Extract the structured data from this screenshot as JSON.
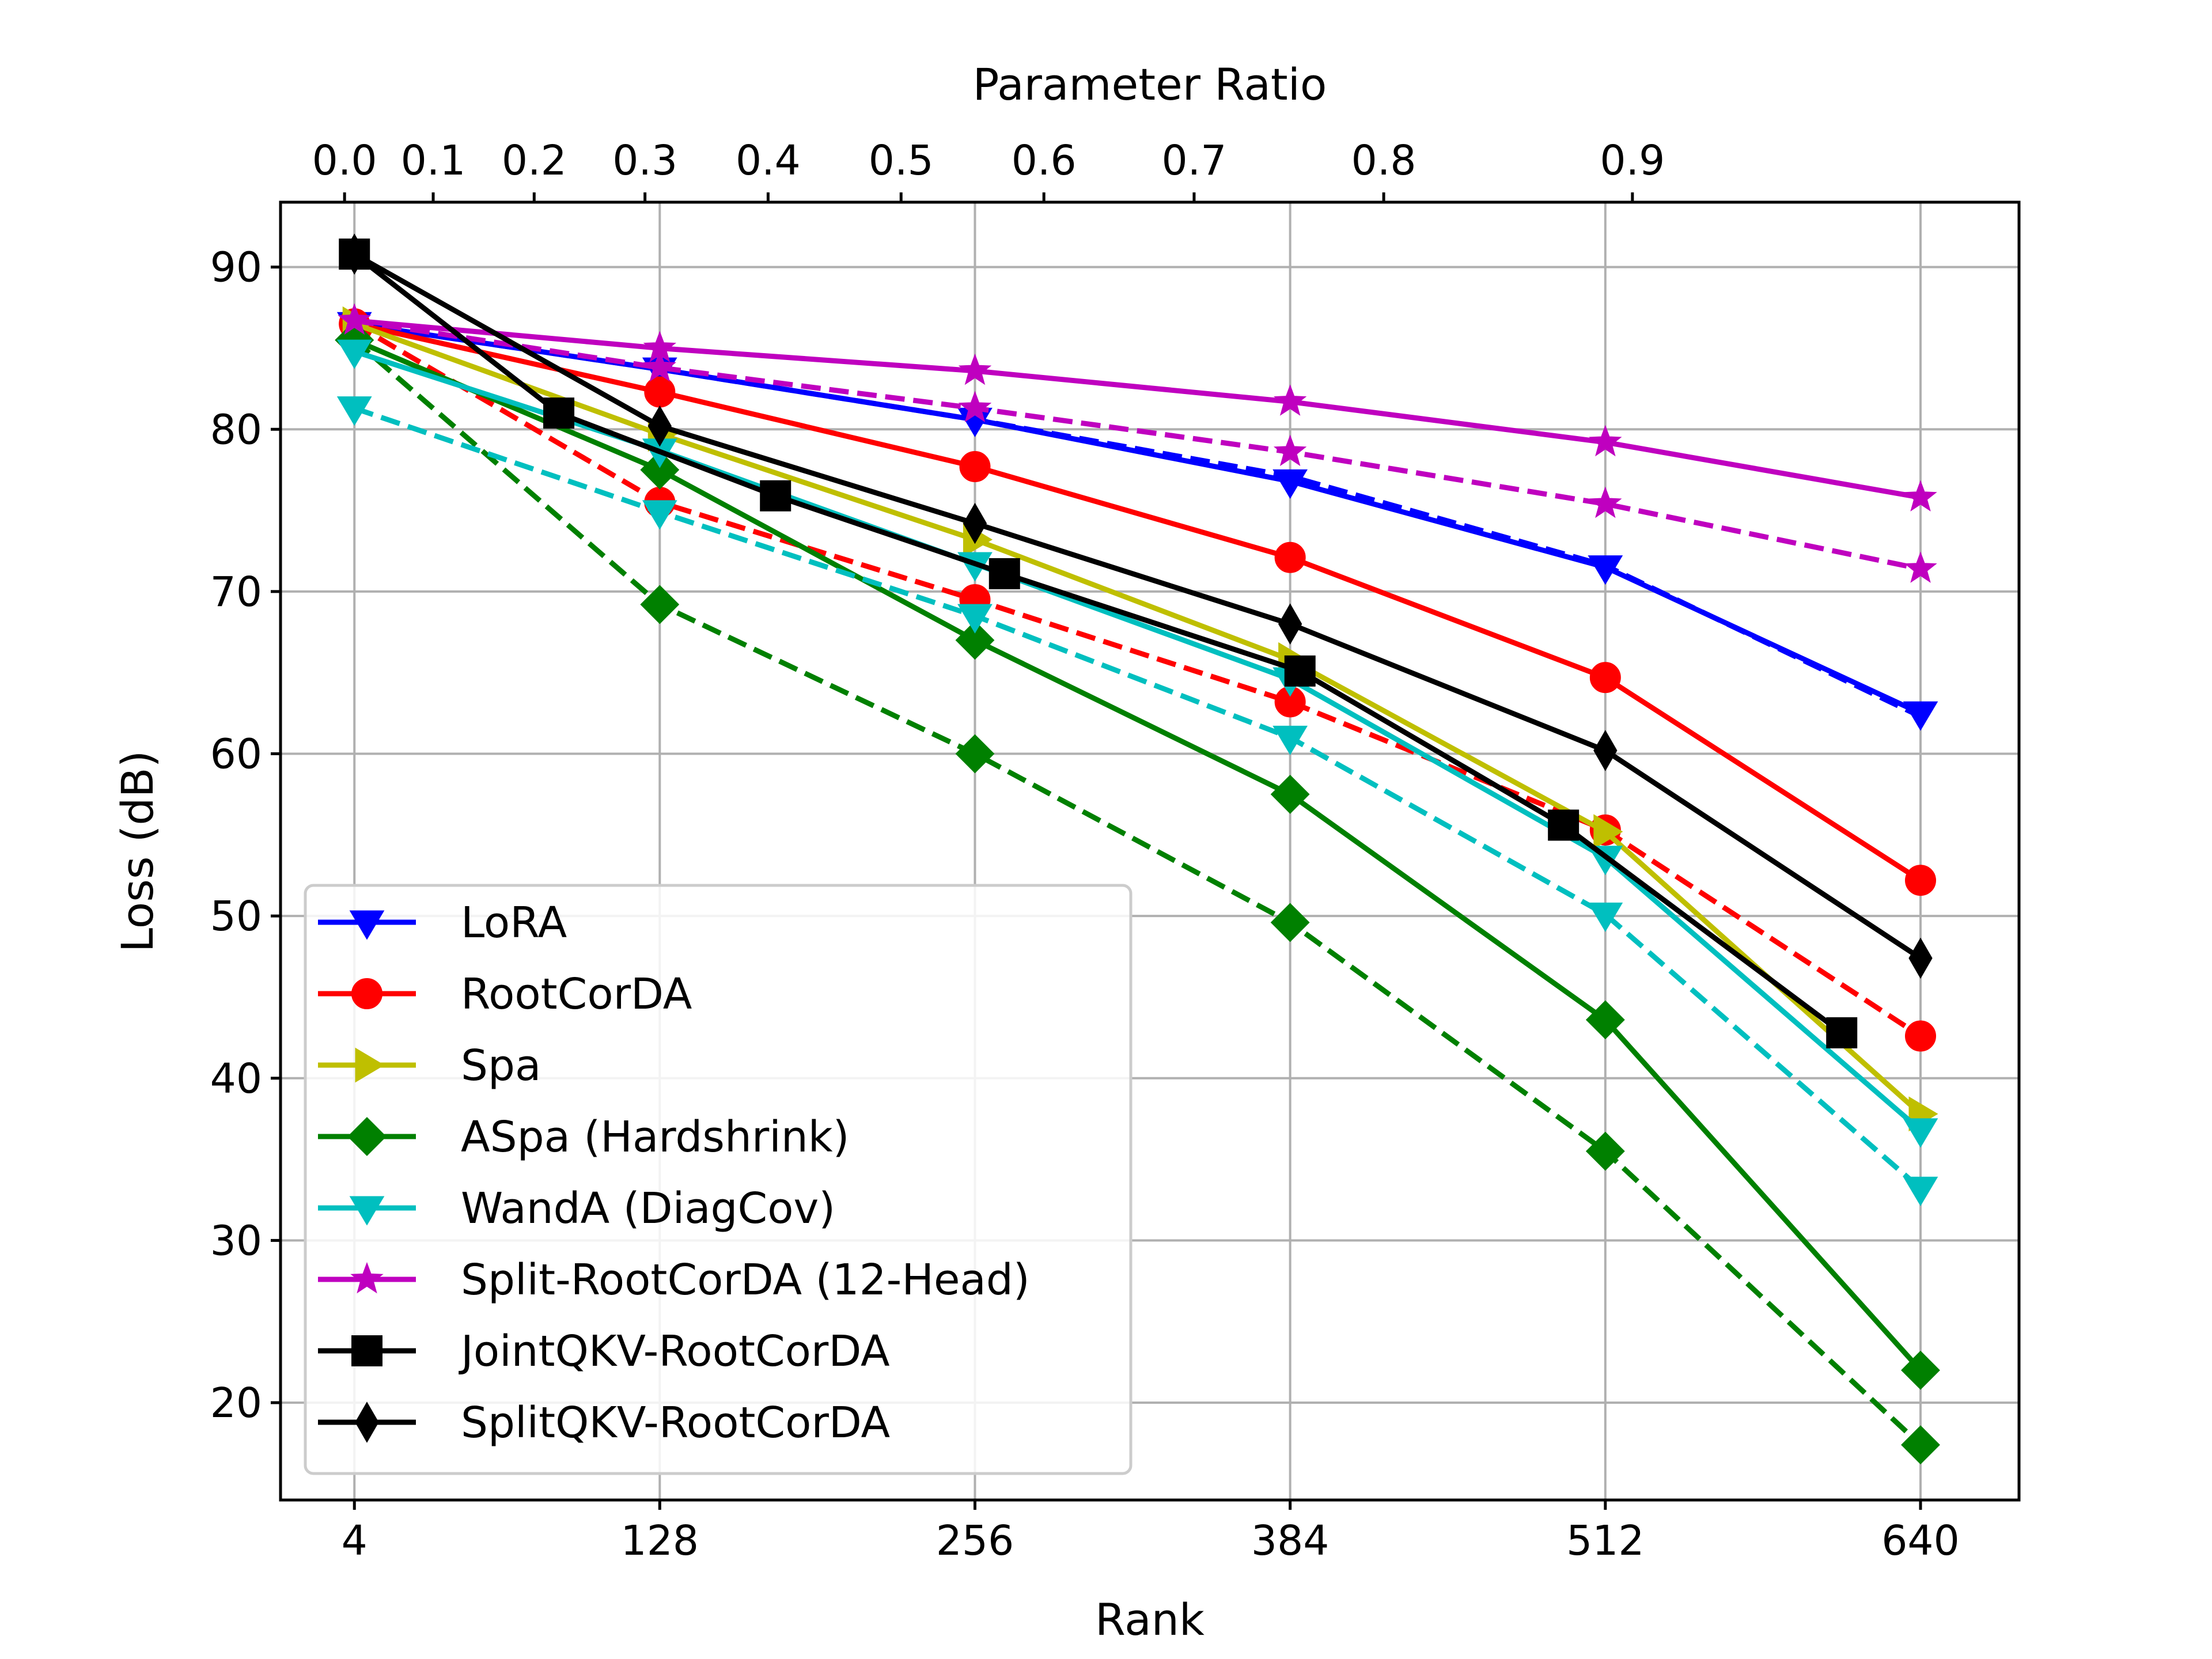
{
  "chart_data": {
    "type": "line",
    "title": "",
    "xlabel": "Rank",
    "ylabel": "Loss (dB)",
    "top_xlabel": "Parameter Ratio",
    "xlim": [
      -26,
      680
    ],
    "ylim": [
      14,
      94
    ],
    "x_ticks": [
      4,
      128,
      256,
      384,
      512,
      640
    ],
    "x_tick_labels": [
      "4",
      "128",
      "256",
      "384",
      "512",
      "640"
    ],
    "y_ticks": [
      20,
      30,
      40,
      50,
      60,
      70,
      80,
      90
    ],
    "y_tick_labels": [
      "20",
      "30",
      "40",
      "50",
      "60",
      "70",
      "80",
      "90"
    ],
    "top_ticks": [
      {
        "label": "0.0",
        "rank": 0
      },
      {
        "label": "0.1",
        "rank": 36
      },
      {
        "label": "0.2",
        "rank": 77
      },
      {
        "label": "0.3",
        "rank": 122
      },
      {
        "label": "0.4",
        "rank": 172
      },
      {
        "label": "0.5",
        "rank": 226
      },
      {
        "label": "0.6",
        "rank": 284
      },
      {
        "label": "0.7",
        "rank": 345
      },
      {
        "label": "0.8",
        "rank": 422
      },
      {
        "label": "0.9",
        "rank": 523
      }
    ],
    "grid": true,
    "legend_position": "lower-left",
    "series": [
      {
        "name": "LoRA",
        "color": "#0000ff",
        "marker": "triangle-down",
        "style": "solid",
        "legend": true,
        "x": [
          4,
          128,
          256,
          384,
          512,
          640
        ],
        "y": [
          86.5,
          83.7,
          80.6,
          76.8,
          71.5,
          62.5
        ]
      },
      {
        "name": "LoRA (dashed)",
        "color": "#0000ff",
        "marker": "none",
        "style": "dashed",
        "legend": false,
        "x": [
          4,
          128,
          256,
          384,
          512,
          640
        ],
        "y": [
          86.5,
          83.7,
          80.6,
          77.1,
          71.6,
          62.3
        ]
      },
      {
        "name": "RootCorDA",
        "color": "#ff0000",
        "marker": "circle",
        "style": "solid",
        "legend": true,
        "x": [
          4,
          128,
          256,
          384,
          512,
          640
        ],
        "y": [
          86.5,
          82.3,
          77.7,
          72.1,
          64.7,
          52.2
        ]
      },
      {
        "name": "RootCorDA (dashed)",
        "color": "#ff0000",
        "marker": "circle",
        "style": "dashed",
        "legend": false,
        "x": [
          4,
          128,
          256,
          384,
          512,
          640
        ],
        "y": [
          86.5,
          75.5,
          69.5,
          63.2,
          55.3,
          42.6
        ]
      },
      {
        "name": "Spa",
        "color": "#bfbf00",
        "marker": "triangle-right",
        "style": "solid",
        "legend": true,
        "x": [
          4,
          128,
          256,
          384,
          512,
          640
        ],
        "y": [
          86.5,
          79.7,
          73.2,
          65.8,
          55.2,
          37.8
        ]
      },
      {
        "name": "ASpa (Hardshrink)",
        "color": "#008000",
        "marker": "diamond",
        "style": "solid",
        "legend": true,
        "x": [
          4,
          128,
          256,
          384,
          512,
          640
        ],
        "y": [
          85.5,
          77.5,
          67.0,
          57.5,
          43.6,
          22.0
        ]
      },
      {
        "name": "ASpa (Hardshrink) (dashed)",
        "color": "#008000",
        "marker": "diamond",
        "style": "dashed",
        "legend": false,
        "x": [
          4,
          128,
          256,
          384,
          512,
          640
        ],
        "y": [
          85.5,
          69.2,
          60.0,
          49.6,
          35.5,
          17.4
        ]
      },
      {
        "name": "WandA (DiagCov)",
        "color": "#00bfbf",
        "marker": "triangle-down",
        "style": "solid",
        "legend": true,
        "x": [
          4,
          128,
          256,
          384,
          512,
          640
        ],
        "y": [
          84.8,
          78.7,
          71.7,
          64.6,
          53.6,
          36.8
        ]
      },
      {
        "name": "WandA (DiagCov) (dashed)",
        "color": "#00bfbf",
        "marker": "triangle-down",
        "style": "dashed",
        "legend": false,
        "x": [
          4,
          128,
          256,
          384,
          512,
          640
        ],
        "y": [
          81.3,
          74.9,
          68.5,
          61.0,
          50.1,
          33.2
        ]
      },
      {
        "name": "Split-RootCorDA (12-Head)",
        "color": "#bf00bf",
        "marker": "star",
        "style": "solid",
        "legend": true,
        "x": [
          4,
          128,
          256,
          384,
          512,
          640
        ],
        "y": [
          86.7,
          85.0,
          83.6,
          81.7,
          79.2,
          75.8
        ]
      },
      {
        "name": "Split-RootCorDA (12-Head) (dashed)",
        "color": "#bf00bf",
        "marker": "star",
        "style": "dashed",
        "legend": false,
        "x": [
          4,
          128,
          256,
          384,
          512,
          640
        ],
        "y": [
          86.7,
          83.8,
          81.3,
          78.6,
          75.4,
          71.4
        ]
      },
      {
        "name": "JointQKV-RootCorDA",
        "color": "#000000",
        "marker": "square",
        "style": "solid",
        "legend": true,
        "x": [
          4,
          87,
          175,
          268,
          388,
          495,
          608
        ],
        "y": [
          90.8,
          81.0,
          75.9,
          71.1,
          65.1,
          55.6,
          42.8
        ]
      },
      {
        "name": "SplitQKV-RootCorDA",
        "color": "#000000",
        "marker": "thin-diamond",
        "style": "solid",
        "legend": true,
        "x": [
          4,
          128,
          256,
          384,
          512,
          640
        ],
        "y": [
          90.8,
          80.2,
          74.2,
          68.0,
          60.2,
          47.4
        ]
      }
    ]
  }
}
